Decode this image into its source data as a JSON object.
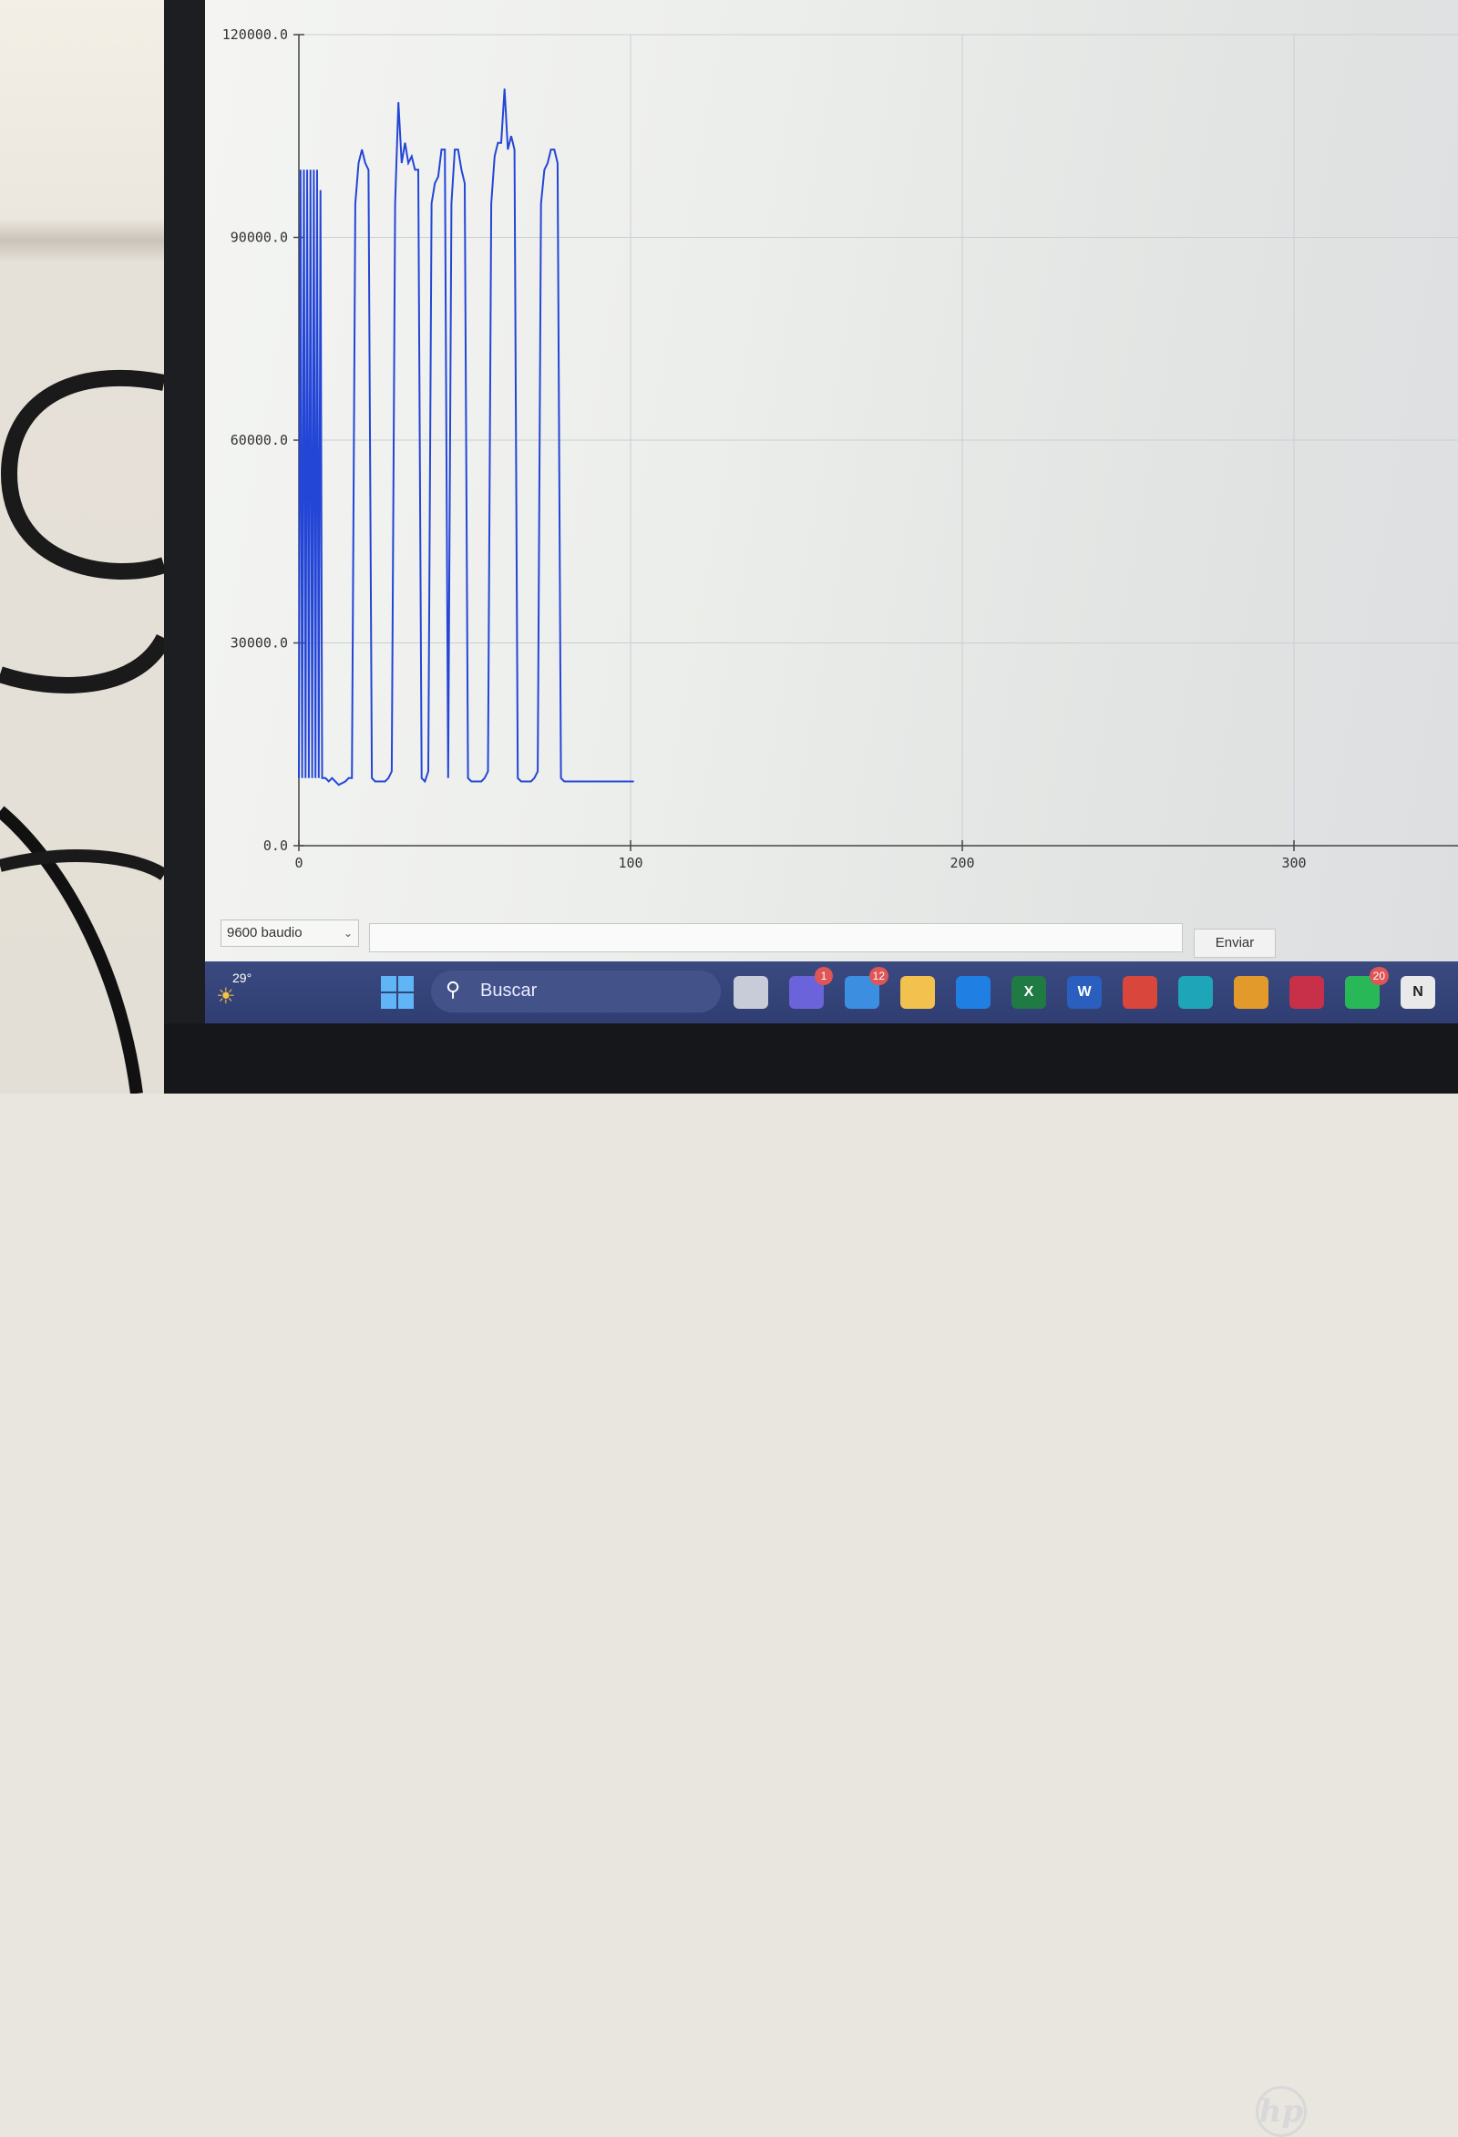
{
  "chart_data": {
    "type": "line",
    "xlim": [
      0,
      300
    ],
    "ylim": [
      0,
      120000
    ],
    "x_ticks": [
      "0",
      "100",
      "200",
      "300"
    ],
    "y_ticks": [
      "0.0",
      "30000.0",
      "60000.0",
      "90000.0",
      "120000.0"
    ],
    "series_color": "#2446d6",
    "grid": true,
    "series": [
      {
        "x": [
          0,
          0.5,
          1,
          1.5,
          2,
          2.5,
          3,
          3.5,
          4,
          4.5,
          5,
          5.5,
          6,
          6.5,
          7,
          7.5,
          8,
          9,
          10,
          12,
          14,
          15,
          16,
          17,
          18,
          19,
          20,
          21,
          22,
          23,
          24,
          25,
          26,
          27,
          28,
          29,
          30,
          31,
          32,
          33,
          34,
          35,
          36,
          37,
          38,
          39,
          40,
          41,
          42,
          43,
          44,
          45,
          46,
          47,
          48,
          49,
          50,
          51,
          52,
          53,
          54,
          55,
          56,
          57,
          58,
          59,
          60,
          61,
          62,
          63,
          64,
          65,
          66,
          67,
          68,
          69,
          70,
          71,
          72,
          73,
          74,
          75,
          76,
          77,
          78,
          79,
          80,
          81,
          82,
          83,
          84,
          85,
          86,
          87,
          88,
          89,
          90,
          91,
          92,
          93,
          94,
          95,
          96,
          97,
          98,
          99,
          100,
          101
        ],
        "y": [
          10000,
          100000,
          10000,
          100000,
          10000,
          100000,
          10000,
          100000,
          10000,
          100000,
          10000,
          100000,
          10000,
          97000,
          10000,
          10000,
          10000,
          9500,
          10000,
          9000,
          9500,
          10000,
          10000,
          95000,
          101000,
          103000,
          101000,
          100000,
          10000,
          9500,
          9500,
          9500,
          9500,
          10000,
          11000,
          95000,
          110000,
          101000,
          104000,
          101000,
          102000,
          100000,
          100000,
          10000,
          9500,
          11000,
          95000,
          98000,
          99000,
          103000,
          103000,
          10000,
          95000,
          103000,
          103000,
          100000,
          98000,
          10000,
          9500,
          9500,
          9500,
          9500,
          10000,
          11000,
          95000,
          102000,
          104000,
          104000,
          112000,
          103000,
          105000,
          103000,
          10000,
          9500,
          9500,
          9500,
          9500,
          10000,
          11000,
          95000,
          100000,
          101000,
          103000,
          103000,
          101000,
          10000,
          9500,
          9500,
          9500,
          9500,
          9500,
          9500,
          9500,
          9500,
          9500,
          9500,
          9500,
          9500,
          9500,
          9500,
          9500,
          9500,
          9500,
          9500,
          9500,
          9500,
          9500,
          9500
        ]
      }
    ]
  },
  "controls": {
    "baud": "9600 baudio",
    "send_label": "Enviar"
  },
  "taskbar": {
    "temperature": "29°",
    "search_label": "Buscar",
    "apps": [
      {
        "name": "task-view-app",
        "label": "",
        "color": "#c8ccd8",
        "badge": ""
      },
      {
        "name": "teams-app",
        "label": "",
        "color": "#6b63d9",
        "badge": "1"
      },
      {
        "name": "mail-app",
        "label": "",
        "color": "#3c8ee0",
        "badge": "12"
      },
      {
        "name": "file-explorer-app",
        "label": "",
        "color": "#f2c14e",
        "badge": ""
      },
      {
        "name": "dropbox-app",
        "label": "",
        "color": "#1f7fe3",
        "badge": ""
      },
      {
        "name": "excel-app",
        "label": "X",
        "color": "#1f7a44",
        "badge": ""
      },
      {
        "name": "word-app",
        "label": "W",
        "color": "#2b5fbf",
        "badge": ""
      },
      {
        "name": "chrome-app",
        "label": "",
        "color": "#d9463b",
        "badge": ""
      },
      {
        "name": "edge-app",
        "label": "",
        "color": "#1ea6b8",
        "badge": ""
      },
      {
        "name": "chrome-profile-app",
        "label": "",
        "color": "#e29a2b",
        "badge": ""
      },
      {
        "name": "red-app",
        "label": "",
        "color": "#c8304a",
        "badge": ""
      },
      {
        "name": "whatsapp-app",
        "label": "",
        "color": "#29b858",
        "badge": "20"
      },
      {
        "name": "notion-app",
        "label": "N",
        "color": "#e9e9e9",
        "badge": ""
      }
    ]
  }
}
